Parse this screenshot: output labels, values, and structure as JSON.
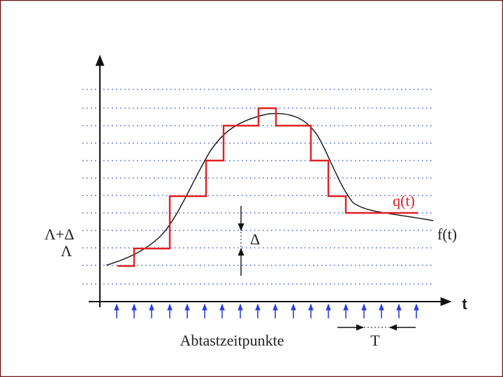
{
  "axis_label": "t",
  "curves": {
    "quantized": "q(t)",
    "original": "f(t)"
  },
  "levels": {
    "upper": "Λ+Δ",
    "lower": "Λ"
  },
  "step_label": "Δ",
  "sampling_label": "Abtastzeitpunkte",
  "period_label": "T"
}
